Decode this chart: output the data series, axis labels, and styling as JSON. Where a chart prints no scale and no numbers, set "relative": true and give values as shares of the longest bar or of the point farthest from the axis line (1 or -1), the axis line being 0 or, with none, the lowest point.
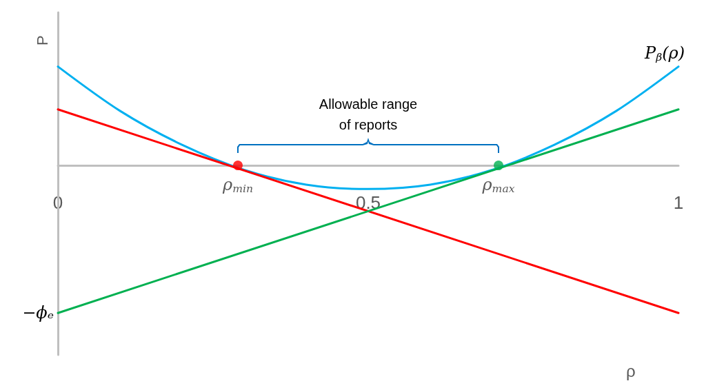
{
  "chart_data": {
    "type": "line",
    "relative": true,
    "xlabel": "ρ",
    "ylabel": "P",
    "xlim": [
      0,
      1
    ],
    "xticks": [
      0,
      0.5,
      1
    ],
    "grid": false,
    "marker": "none",
    "line_style": "solid",
    "series": [
      {
        "color": "#00b0f0",
        "x": [
          0,
          0.1,
          0.2,
          0.3,
          0.4,
          0.5,
          0.6,
          0.7,
          0.8,
          0.9,
          1
        ],
        "values": [
          0.67,
          0.37,
          0.14,
          -0.03,
          -0.13,
          -0.16,
          -0.13,
          -0.03,
          0.14,
          0.37,
          0.67
        ]
      },
      {
        "color": "#ff0000",
        "x": [
          0,
          1
        ],
        "values": [
          0.38,
          -1
        ]
      },
      {
        "color": "#00b050",
        "x": [
          0,
          1
        ],
        "values": [
          -1,
          0.38
        ]
      },
      {
        "type": "scatter",
        "marker": "circle",
        "color": "#ff0000",
        "x": [
          0.29
        ],
        "values": [
          0
        ]
      },
      {
        "type": "scatter",
        "marker": "circle",
        "color": "#00b050",
        "x": [
          0.71
        ],
        "values": [
          0
        ]
      }
    ],
    "annotations": [
      {
        "text": "P$_{β}$(ρ)",
        "x": 1,
        "y": 0.67
      },
      "Allowable range\nof reports",
      {
        "text": "ρ$_{min}$",
        "x": 0.29,
        "y": 0
      },
      {
        "text": "ρ$_{max}$",
        "x": 0.71,
        "y": 0
      },
      {
        "text": "−ϕₑ",
        "x": 0,
        "y": -1
      }
    ]
  }
}
